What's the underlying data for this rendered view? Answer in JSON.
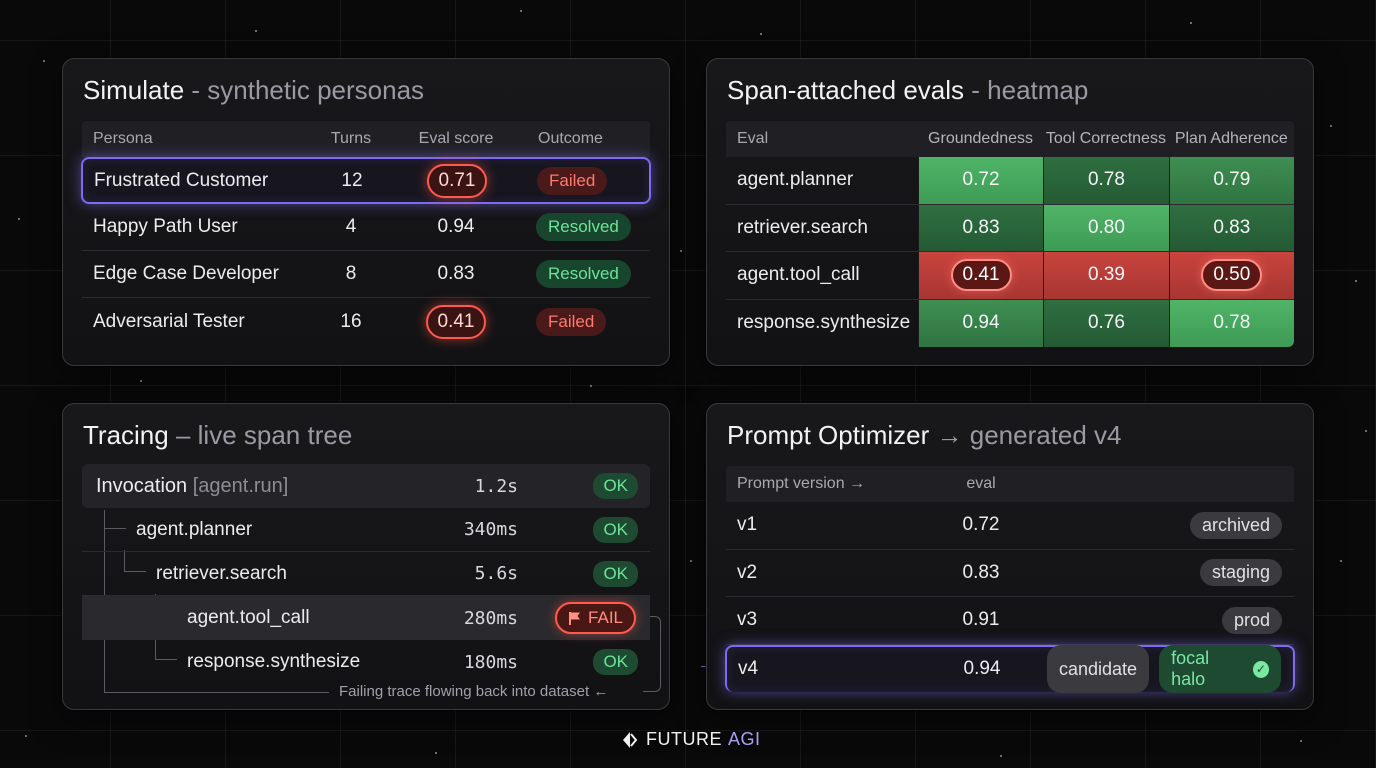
{
  "simulate": {
    "title": "Simulate",
    "subtitle": "- synthetic personas",
    "headers": {
      "persona": "Persona",
      "turns": "Turns",
      "eval_score": "Eval score",
      "outcome": "Outcome"
    },
    "rows": [
      {
        "persona": "Frustrated Customer",
        "turns": "12",
        "score": "0.71",
        "outcome": "Failed"
      },
      {
        "persona": "Happy Path User",
        "turns": "4",
        "score": "0.94",
        "outcome": "Resolved"
      },
      {
        "persona": "Edge Case Developer",
        "turns": "8",
        "score": "0.83",
        "outcome": "Resolved"
      },
      {
        "persona": "Adversarial Tester",
        "turns": "16",
        "score": "0.41",
        "outcome": "Failed"
      }
    ]
  },
  "heatmap": {
    "title": "Span-attached evals",
    "subtitle": "- heatmap",
    "headers": {
      "eval": "Eval",
      "col1": "Groundedness",
      "col2": "Tool Correctness",
      "col3": "Plan Adherence"
    },
    "rows": [
      {
        "label": "agent.planner",
        "v1": "0.72",
        "v2": "0.78",
        "v3": "0.79"
      },
      {
        "label": "retriever.search",
        "v1": "0.83",
        "v2": "0.80",
        "v3": "0.83"
      },
      {
        "label": "agent.tool_call",
        "v1": "0.41",
        "v2": "0.39",
        "v3": "0.50"
      },
      {
        "label": "response.synthesize",
        "v1": "0.94",
        "v2": "0.76",
        "v3": "0.78"
      }
    ]
  },
  "tracing": {
    "title": "Tracing",
    "subtitle": "– live span tree",
    "root": {
      "name": "Invocation",
      "tag": "[agent.run]",
      "time": "1.2s",
      "status": "OK"
    },
    "spans": [
      {
        "name": "agent.planner",
        "time": "340ms",
        "status": "OK"
      },
      {
        "name": "retriever.search",
        "time": "5.6s",
        "status": "OK"
      },
      {
        "name": "agent.tool_call",
        "time": "280ms",
        "status": "FAIL"
      },
      {
        "name": "response.synthesize",
        "time": "180ms",
        "status": "OK"
      }
    ],
    "footer": "Failing trace flowing back into dataset"
  },
  "optimizer": {
    "title": "Prompt Optimizer",
    "arrow": "→",
    "subtitle": "generated v4",
    "headers": {
      "version": "Prompt version →",
      "eval": "eval"
    },
    "rows": [
      {
        "version": "v1",
        "eval": "0.72",
        "tag": "archived"
      },
      {
        "version": "v2",
        "eval": "0.83",
        "tag": "staging"
      },
      {
        "version": "v3",
        "eval": "0.91",
        "tag": "prod"
      },
      {
        "version": "v4",
        "eval": "0.94",
        "tag": "candidate",
        "tag2": "focal halo"
      }
    ],
    "side_arrow": "→"
  },
  "brand": {
    "name_part1": "FUTURE",
    "name_part2": "AGI"
  },
  "colors": {
    "accent_purple": "#7b6cf0",
    "ok_green": "#6ee39a",
    "fail_red": "#ff5a4e"
  }
}
